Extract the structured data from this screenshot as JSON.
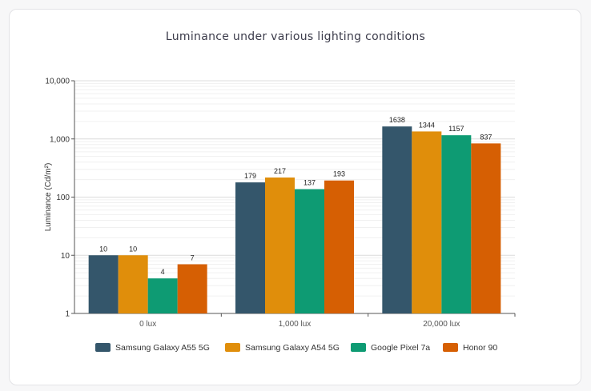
{
  "chart_data": {
    "type": "bar",
    "title": "Luminance under various lighting conditions",
    "ylabel": "Luminance (Cd/m²)",
    "xlabel": "",
    "yscale": "log",
    "ylim": [
      1,
      10000
    ],
    "yticks": [
      "1",
      "10",
      "100",
      "1,000",
      "10,000"
    ],
    "categories": [
      "0 lux",
      "1,000 lux",
      "20,000 lux"
    ],
    "series": [
      {
        "name": "Samsung Galaxy A55 5G",
        "color": "#34566b",
        "values": [
          10,
          179,
          1638
        ]
      },
      {
        "name": "Samsung Galaxy A54 5G",
        "color": "#e08e0b",
        "values": [
          10,
          217,
          1344
        ]
      },
      {
        "name": "Google Pixel 7a",
        "color": "#0e9b73",
        "values": [
          4,
          137,
          1157
        ]
      },
      {
        "name": "Honor 90",
        "color": "#d65f03",
        "values": [
          7,
          193,
          837
        ]
      }
    ],
    "grid": true,
    "legend": "bottom"
  }
}
